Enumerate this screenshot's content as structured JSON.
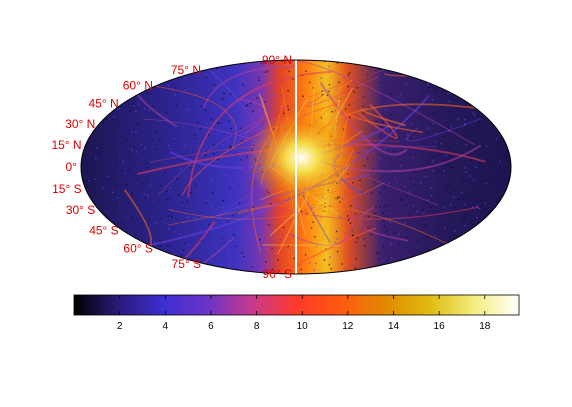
{
  "map": {
    "projection": "Mollweide",
    "grid": false,
    "frame_color": "#000000",
    "label_color": "#e00000",
    "latitude_labels": [
      {
        "deg": 90,
        "text": "90° N"
      },
      {
        "deg": 75,
        "text": "75° N"
      },
      {
        "deg": 60,
        "text": "60° N"
      },
      {
        "deg": 45,
        "text": "45° N"
      },
      {
        "deg": 30,
        "text": "30° N"
      },
      {
        "deg": 15,
        "text": "15° N"
      },
      {
        "deg": 0,
        "text": "0°"
      },
      {
        "deg": -15,
        "text": "15° S"
      },
      {
        "deg": -30,
        "text": "30° S"
      },
      {
        "deg": -45,
        "text": "45° S"
      },
      {
        "deg": -60,
        "text": "60° S"
      },
      {
        "deg": -75,
        "text": "75° S"
      },
      {
        "deg": -90,
        "text": "90° S"
      }
    ]
  },
  "colorbar": {
    "orientation": "horizontal",
    "placement": "bottom",
    "colormap": "hot-blue",
    "stops": [
      "#000000",
      "#2a1a7a",
      "#3d2fd0",
      "#6a34c8",
      "#c83a8c",
      "#ff3a2a",
      "#ff5a10",
      "#e08a00",
      "#e0bc10",
      "#f4ee80",
      "#ffffff"
    ],
    "range": [
      0,
      19.5
    ],
    "ticks": [
      {
        "value": 2,
        "label": "2"
      },
      {
        "value": 4,
        "label": "4"
      },
      {
        "value": 6,
        "label": "6"
      },
      {
        "value": 8,
        "label": "8"
      },
      {
        "value": 10,
        "label": "10"
      },
      {
        "value": 12,
        "label": "12"
      },
      {
        "value": 14,
        "label": "14"
      },
      {
        "value": 16,
        "label": "16"
      },
      {
        "value": 18,
        "label": "18"
      }
    ]
  }
}
